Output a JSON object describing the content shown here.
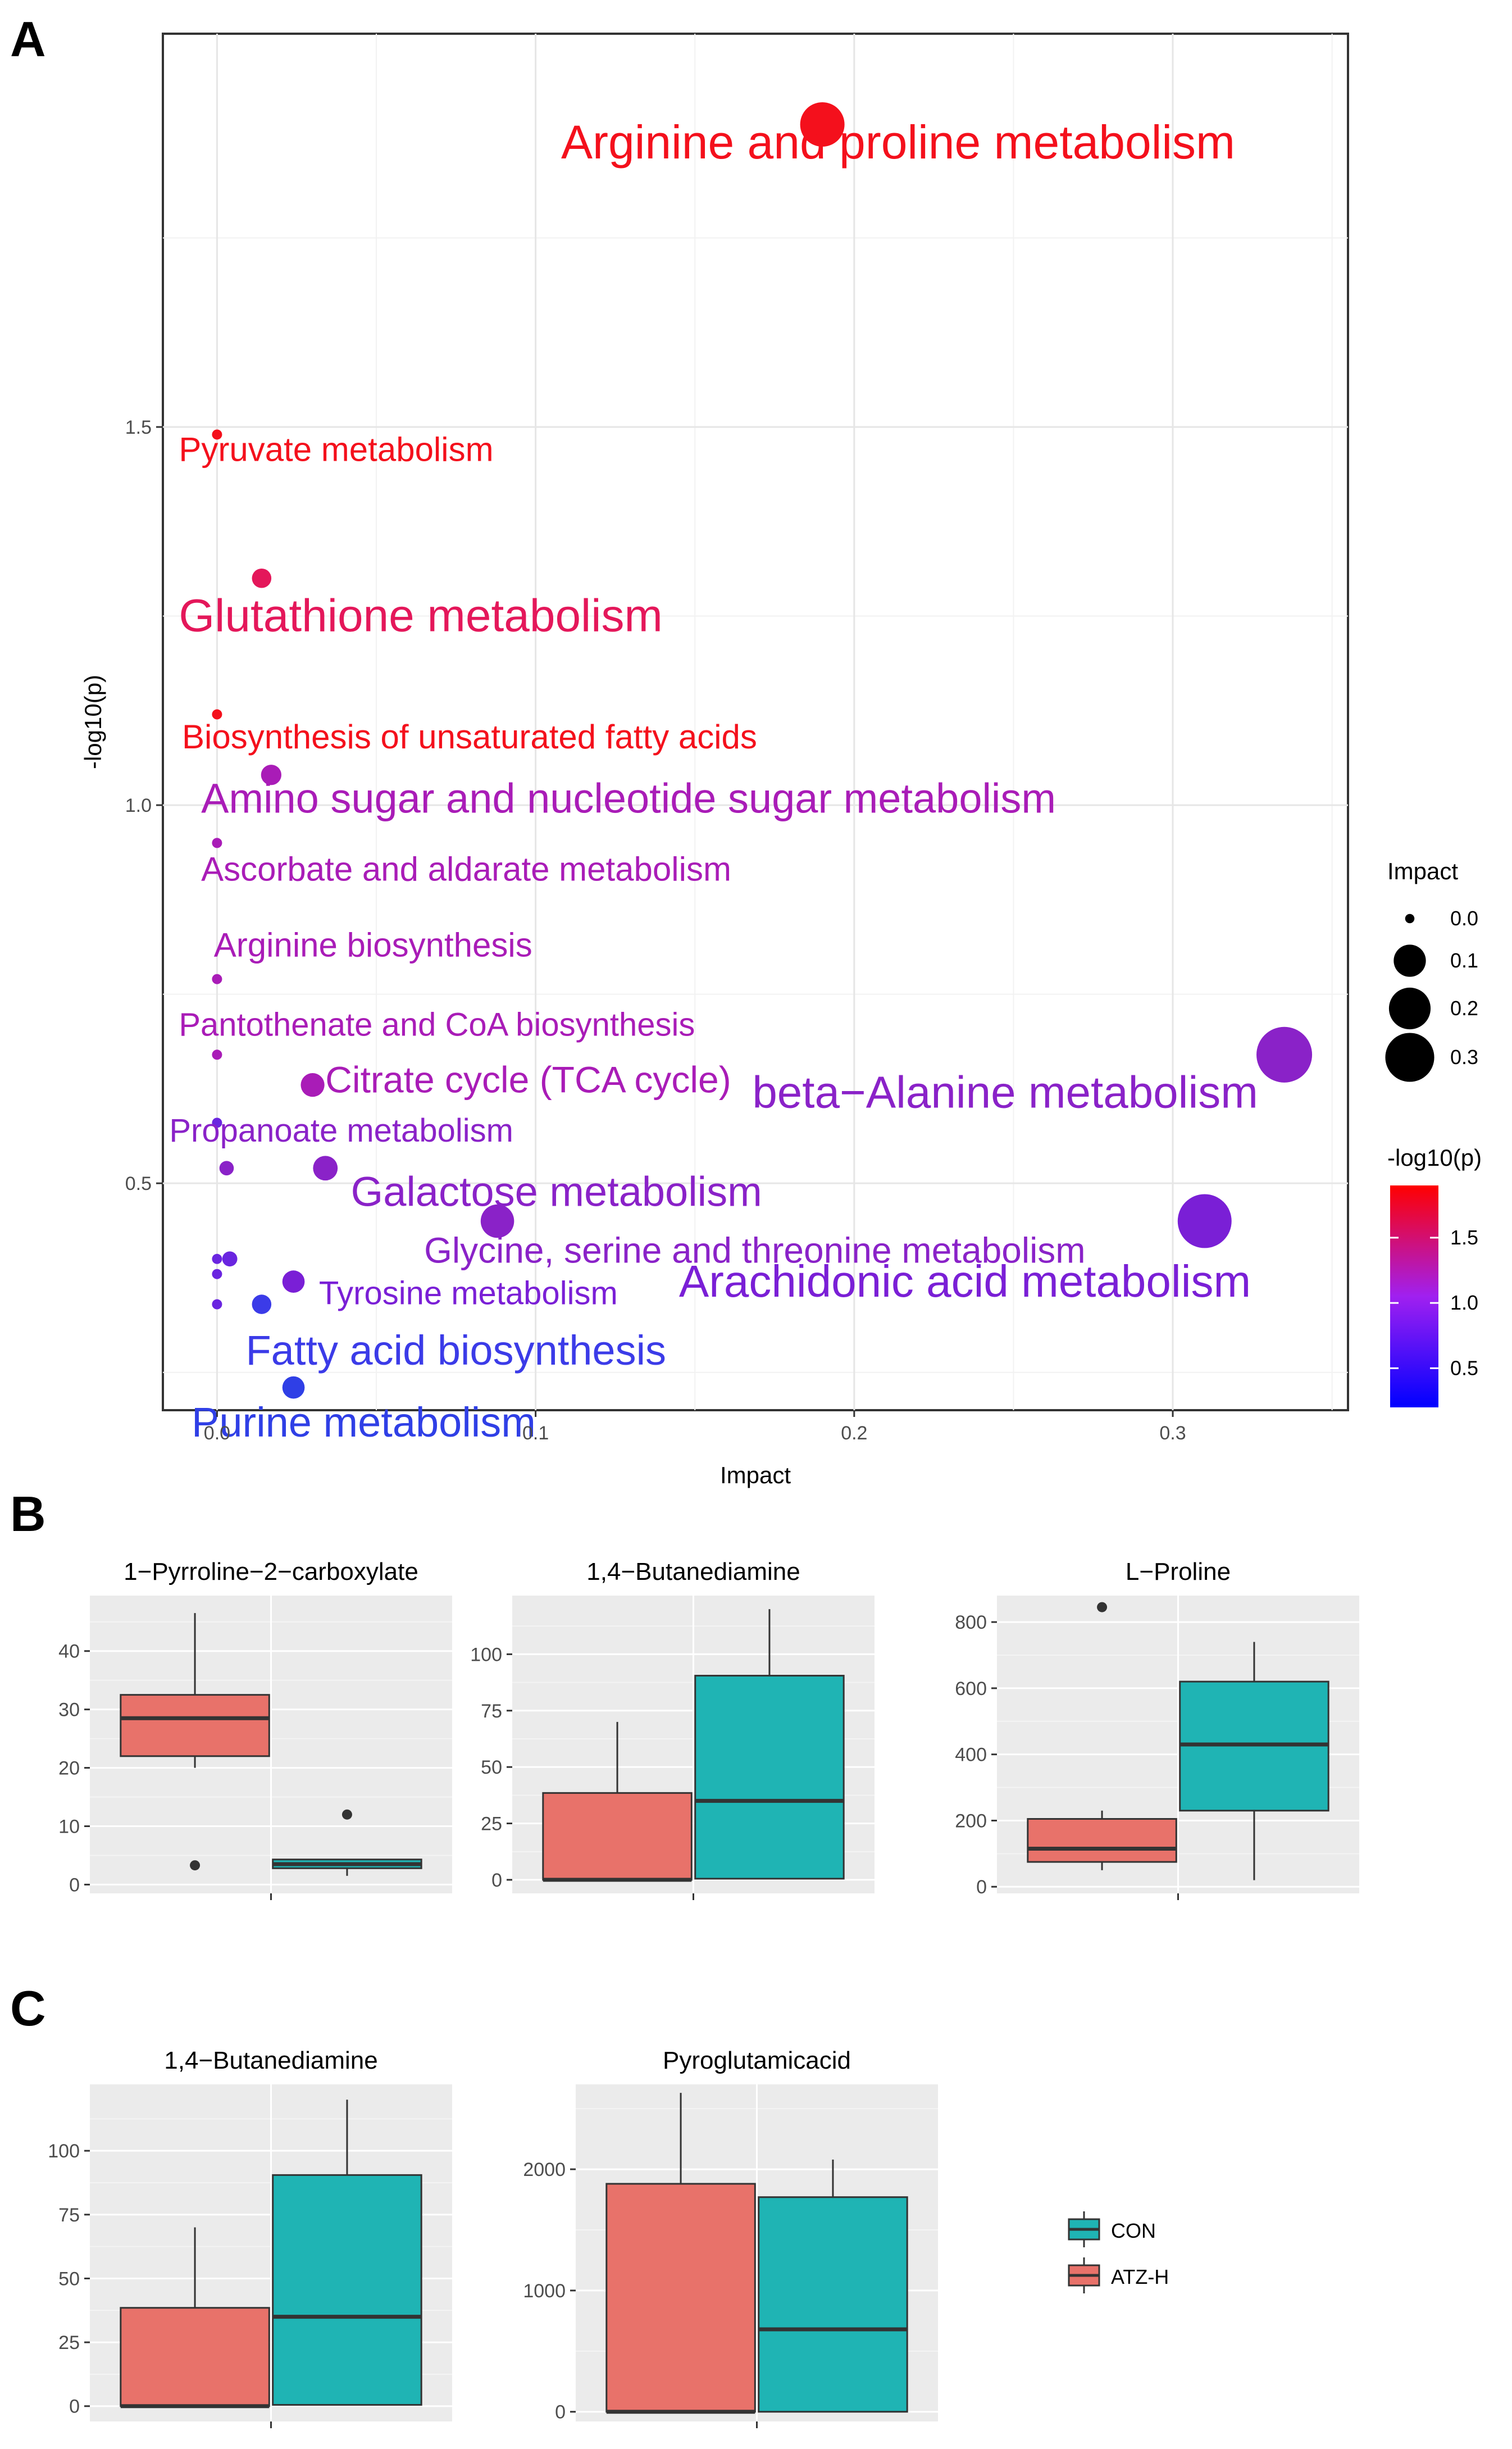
{
  "panels": {
    "a": "A",
    "b": "B",
    "c": "C"
  },
  "chart_data": [
    {
      "id": "A",
      "type": "scatter",
      "xlabel": "Impact",
      "ylabel": "-log10(p)",
      "xlim": [
        -0.017,
        0.355
      ],
      "ylim": [
        0.2,
        2.02
      ],
      "xticks": [
        0.0,
        0.1,
        0.2,
        0.3
      ],
      "xtick_labels": [
        "0.0",
        "0.1",
        "0.2",
        "0.3"
      ],
      "yticks": [
        0.5,
        1.0,
        1.5
      ],
      "ytick_labels": [
        "0.5",
        "1.0",
        "1.5"
      ],
      "color_scale": {
        "low": "#0000ff",
        "mid": "#a020f0",
        "high": "#ff0000",
        "range": [
          0.2,
          1.9
        ]
      },
      "size_legend": {
        "title": "Impact",
        "values": [
          0.0,
          0.1,
          0.2,
          0.3
        ],
        "labels": [
          "0.0",
          "0.1",
          "0.2",
          "0.3"
        ]
      },
      "color_legend": {
        "title": "-log10(p)",
        "values": [
          0.5,
          1.0,
          1.5
        ],
        "labels": [
          "0.5",
          "1.0",
          "1.5"
        ]
      },
      "points": [
        {
          "label": "Arginine and proline metabolism",
          "x": 0.19,
          "y": 1.9,
          "lx": 0.108,
          "ly": 1.855,
          "fs": 84,
          "color": "#f4101c"
        },
        {
          "label": "Pyruvate metabolism",
          "x": 0.0,
          "y": 1.49,
          "lx": -0.012,
          "ly": 1.455,
          "fs": 60,
          "color": "#f4101c"
        },
        {
          "label": "Glutathione metabolism",
          "x": 0.014,
          "y": 1.3,
          "lx": -0.012,
          "ly": 1.23,
          "fs": 82,
          "color": "#e4175a"
        },
        {
          "label": "Biosynthesis of unsaturated fatty acids",
          "x": 0.0,
          "y": 1.12,
          "lx": -0.011,
          "ly": 1.075,
          "fs": 60,
          "color": "#f4101c"
        },
        {
          "label": "Amino sugar and nucleotide sugar metabolism",
          "x": 0.017,
          "y": 1.04,
          "lx": -0.005,
          "ly": 0.99,
          "fs": 74,
          "color": "#a91cb7"
        },
        {
          "label": "Ascorbate and aldarate metabolism",
          "x": 0.0,
          "y": 0.95,
          "lx": -0.005,
          "ly": 0.9,
          "fs": 60,
          "color": "#a91cb7"
        },
        {
          "label": "Arginine biosynthesis",
          "x": 0.0,
          "y": 0.77,
          "lx": -0.001,
          "ly": 0.8,
          "fs": 60,
          "color": "#a91cb7"
        },
        {
          "label": "Pantothenate and CoA biosynthesis",
          "x": 0.0,
          "y": 0.67,
          "lx": -0.012,
          "ly": 0.695,
          "fs": 58,
          "color": "#a91cb7"
        },
        {
          "label": "Citrate cycle (TCA cycle)",
          "x": 0.03,
          "y": 0.63,
          "lx": 0.034,
          "ly": 0.62,
          "fs": 66,
          "color": "#a91cb7"
        },
        {
          "label": "beta−Alanine metabolism",
          "x": 0.335,
          "y": 0.67,
          "lx": 0.168,
          "ly": 0.6,
          "fs": 80,
          "color": "#8a22c8"
        },
        {
          "label": "Propanoate metabolism",
          "x": 0.003,
          "y": 0.52,
          "lx": -0.015,
          "ly": 0.555,
          "fs": 58,
          "color": "#8a22c8"
        },
        {
          "label": "Galactose metabolism",
          "x": 0.034,
          "y": 0.52,
          "lx": 0.042,
          "ly": 0.47,
          "fs": 74,
          "color": "#8a22c8"
        },
        {
          "label": "Glycine, serine and threonine metabolism",
          "x": 0.088,
          "y": 0.45,
          "lx": 0.065,
          "ly": 0.395,
          "fs": 64,
          "color": "#8a22c8"
        },
        {
          "label": "Arachidonic acid metabolism",
          "x": 0.31,
          "y": 0.45,
          "lx": 0.145,
          "ly": 0.35,
          "fs": 80,
          "color": "#7a1fd6"
        },
        {
          "label": "Tyrosine metabolism",
          "x": 0.024,
          "y": 0.37,
          "lx": 0.032,
          "ly": 0.34,
          "fs": 58,
          "color": "#7a1fd6"
        },
        {
          "label": "Fatty acid biosynthesis",
          "x": 0.014,
          "y": 0.34,
          "lx": 0.009,
          "ly": 0.26,
          "fs": 74,
          "color": "#3b3be8"
        },
        {
          "label": "Purine metabolism",
          "x": 0.024,
          "y": 0.23,
          "lx": -0.008,
          "ly": 0.165,
          "fs": 74,
          "color": "#2f3fe6"
        }
      ],
      "unlabeled_points": [
        {
          "x": 0.0,
          "y": 0.58
        },
        {
          "x": 0.0,
          "y": 0.4
        },
        {
          "x": 0.004,
          "y": 0.4
        },
        {
          "x": 0.0,
          "y": 0.38
        },
        {
          "x": 0.0,
          "y": 0.34
        }
      ]
    },
    {
      "id": "B",
      "type": "box",
      "facets": [
        {
          "title": "1−Pyrroline−2−carboxylate",
          "ylim": [
            -1.5,
            49.5
          ],
          "yticks": [
            0,
            10,
            20,
            30,
            40
          ],
          "ytick_labels": [
            "0",
            "10",
            "20",
            "30",
            "40"
          ],
          "boxes": [
            {
              "group": "ATZ-H",
              "min": 20,
              "q1": 22,
              "median": 28.5,
              "q3": 32.5,
              "max": 46.5,
              "outliers": [
                3.3
              ]
            },
            {
              "group": "CON",
              "min": 1.5,
              "q1": 2.8,
              "median": 3.5,
              "q3": 4.3,
              "max": 4.4,
              "outliers": [
                12
              ]
            }
          ]
        },
        {
          "title": "1,4−Butanediamine",
          "ylim": [
            -6,
            126
          ],
          "yticks": [
            0,
            25,
            50,
            75,
            100
          ],
          "ytick_labels": [
            "0",
            "25",
            "50",
            "75",
            "100"
          ],
          "boxes": [
            {
              "group": "ATZ-H",
              "min": 0,
              "q1": 0,
              "median": 0,
              "q3": 38.5,
              "max": 70,
              "outliers": []
            },
            {
              "group": "CON",
              "min": 0.5,
              "q1": 0.5,
              "median": 35,
              "q3": 90.5,
              "max": 120,
              "outliers": []
            }
          ]
        },
        {
          "title": "L−Proline",
          "ylim": [
            -20,
            880
          ],
          "yticks": [
            0,
            200,
            400,
            600,
            800
          ],
          "ytick_labels": [
            "0",
            "200",
            "400",
            "600",
            "800"
          ],
          "boxes": [
            {
              "group": "ATZ-H",
              "min": 50,
              "q1": 75,
              "median": 115,
              "q3": 205,
              "max": 230,
              "outliers": [
                845
              ]
            },
            {
              "group": "CON",
              "min": 20,
              "q1": 230,
              "median": 430,
              "q3": 620,
              "max": 740,
              "outliers": []
            }
          ]
        }
      ]
    },
    {
      "id": "C",
      "type": "box",
      "legend": [
        {
          "label": "CON",
          "color": "#1fb4b4"
        },
        {
          "label": "ATZ-H",
          "color": "#e8726a"
        }
      ],
      "facets": [
        {
          "title": "1,4−Butanediamine",
          "ylim": [
            -6,
            126
          ],
          "yticks": [
            0,
            25,
            50,
            75,
            100
          ],
          "ytick_labels": [
            "0",
            "25",
            "50",
            "75",
            "100"
          ],
          "boxes": [
            {
              "group": "ATZ-H",
              "min": 0,
              "q1": 0,
              "median": 0,
              "q3": 38.5,
              "max": 70,
              "outliers": []
            },
            {
              "group": "CON",
              "min": 0.5,
              "q1": 0.5,
              "median": 35,
              "q3": 90.5,
              "max": 120,
              "outliers": []
            }
          ]
        },
        {
          "title": "Pyroglutamicacid",
          "ylim": [
            -80,
            2700
          ],
          "yticks": [
            0,
            1000,
            2000
          ],
          "ytick_labels": [
            "0",
            "1000",
            "2000"
          ],
          "boxes": [
            {
              "group": "ATZ-H",
              "min": 0,
              "q1": 0,
              "median": 0,
              "q3": 1880,
              "max": 2630,
              "outliers": []
            },
            {
              "group": "CON",
              "min": 0,
              "q1": 0,
              "median": 680,
              "q3": 1770,
              "max": 2080,
              "outliers": []
            }
          ]
        }
      ]
    }
  ],
  "group_colors": {
    "ATZ-H": "#e8726a",
    "CON": "#1fb4b4"
  }
}
